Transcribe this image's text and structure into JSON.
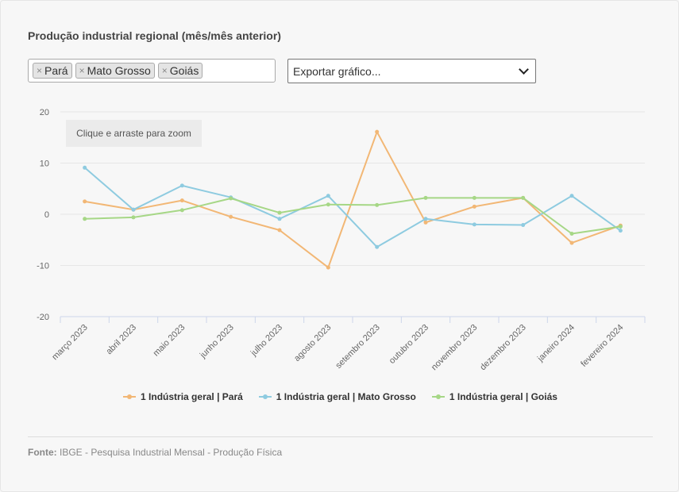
{
  "title": "Produção industrial regional (mês/mês anterior)",
  "filter": {
    "tags": [
      {
        "label": "Pará"
      },
      {
        "label": "Mato Grosso"
      },
      {
        "label": "Goiás"
      }
    ],
    "remove_symbol": "×"
  },
  "export": {
    "label": "Exportar gráfico..."
  },
  "zoom_hint": "Clique e arraste para zoom",
  "source": {
    "label": "Fonte:",
    "text": "IBGE - Pesquisa Industrial Mensal - Produção Física"
  },
  "chart_data": {
    "type": "line",
    "title": "Produção industrial regional (mês/mês anterior)",
    "categories": [
      "março 2023",
      "abril 2023",
      "maio 2023",
      "junho 2023",
      "julho 2023",
      "agosto 2023",
      "setembro 2023",
      "outubro 2023",
      "novembro 2023",
      "dezembro 2023",
      "janeiro 2024",
      "fevereiro 2024"
    ],
    "ylim": [
      -20,
      20
    ],
    "yticks": [
      20,
      10,
      0,
      -10,
      -20
    ],
    "grid": true,
    "legend_position": "bottom",
    "series": [
      {
        "name": "1 Indústria geral | Pará",
        "color": "#f2b775",
        "values": [
          2.5,
          0.9,
          2.7,
          -0.5,
          -3.1,
          -10.4,
          16.1,
          -1.6,
          1.5,
          3.2,
          -5.6,
          -2.2
        ]
      },
      {
        "name": "1 Indústria geral | Mato Grosso",
        "color": "#8ecbe0",
        "values": [
          9.1,
          0.9,
          5.6,
          3.3,
          -0.9,
          3.6,
          -6.4,
          -0.9,
          -2.0,
          -2.1,
          3.6,
          -3.2
        ]
      },
      {
        "name": "1 Indústria geral | Goiás",
        "color": "#a6d786",
        "values": [
          -0.9,
          -0.6,
          0.8,
          3.1,
          0.3,
          1.9,
          1.8,
          3.2,
          3.2,
          3.2,
          -3.8,
          -2.4
        ]
      }
    ]
  }
}
